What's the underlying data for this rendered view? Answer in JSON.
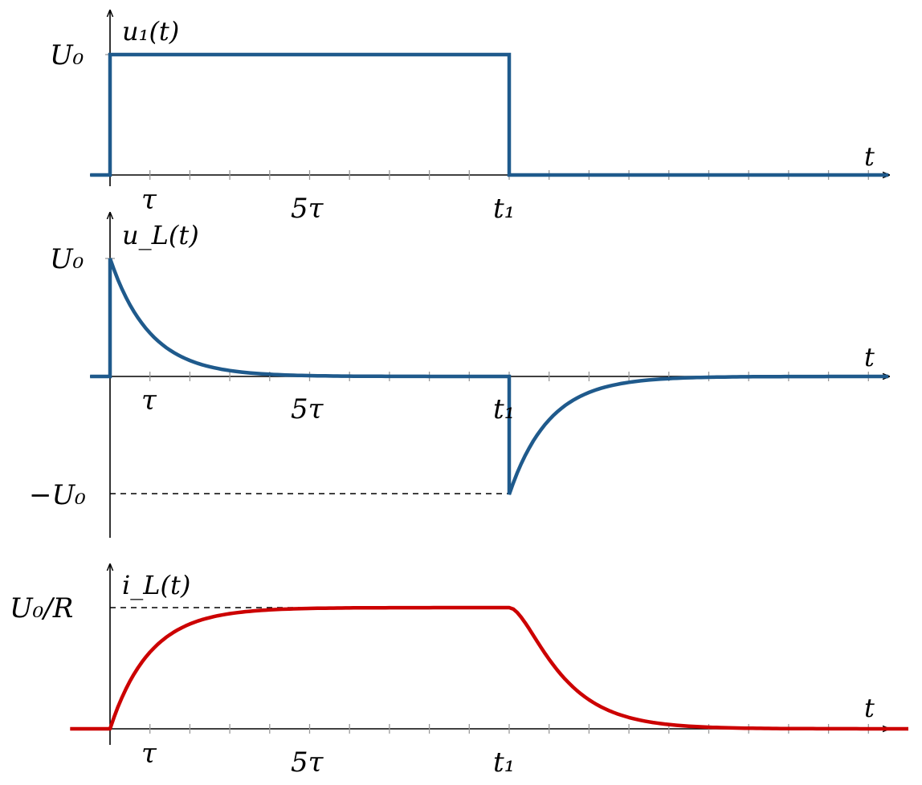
{
  "chart_data": [
    {
      "type": "line",
      "ylabel": "u₁(t)",
      "xlabel": "t",
      "x_tick_labels": [
        "τ",
        "5τ",
        "t₁"
      ],
      "y_tick_labels": [
        "U₀"
      ],
      "t1": 10,
      "series": [
        {
          "color": "#1f5a8c",
          "x": [
            -0.5,
            0,
            0,
            10,
            10,
            19.5
          ],
          "y": [
            0,
            0,
            1,
            1,
            0,
            0
          ]
        }
      ],
      "xlim": [
        -0.5,
        19.5
      ],
      "ylim": [
        0,
        1.3
      ]
    },
    {
      "type": "line",
      "ylabel": "u_L(t)",
      "xlabel": "t",
      "x_tick_labels": [
        "τ",
        "5τ",
        "t₁"
      ],
      "y_tick_labels": [
        "U₀",
        "−U₀"
      ],
      "t1": 10,
      "series": [
        {
          "color": "#1f5a8c",
          "x": [
            -0.5,
            0,
            0,
            1,
            2,
            3,
            4,
            5,
            6,
            8,
            10,
            10,
            11,
            12,
            13,
            14,
            15,
            16,
            18,
            19.5
          ],
          "y": [
            0,
            0,
            1,
            0.37,
            0.14,
            0.05,
            0.02,
            0.01,
            0.0,
            0.0,
            0.0,
            -1,
            -0.37,
            -0.14,
            -0.05,
            -0.02,
            -0.01,
            0.0,
            0.0,
            0.0
          ]
        }
      ],
      "xlim": [
        -0.5,
        19.5
      ],
      "ylim": [
        -1.35,
        1.3
      ]
    },
    {
      "type": "line",
      "ylabel": "i_L(t)",
      "xlabel": "t",
      "x_tick_labels": [
        "τ",
        "5τ",
        "t₁"
      ],
      "y_tick_labels": [
        "U₀/R"
      ],
      "t1": 10,
      "series": [
        {
          "color": "#cc0000",
          "x": [
            -1,
            0,
            1,
            2,
            3,
            4,
            5,
            6,
            8,
            10,
            11,
            12,
            13,
            14,
            15,
            16,
            18,
            20
          ],
          "y": [
            0,
            0,
            0.63,
            0.86,
            0.95,
            0.98,
            0.99,
            1.0,
            1.0,
            1.0,
            0.63,
            0.37,
            0.14,
            0.05,
            0.02,
            0.01,
            0.0,
            0.0
          ]
        }
      ],
      "xlim": [
        -1,
        20
      ],
      "ylim": [
        0,
        1.3
      ]
    }
  ]
}
